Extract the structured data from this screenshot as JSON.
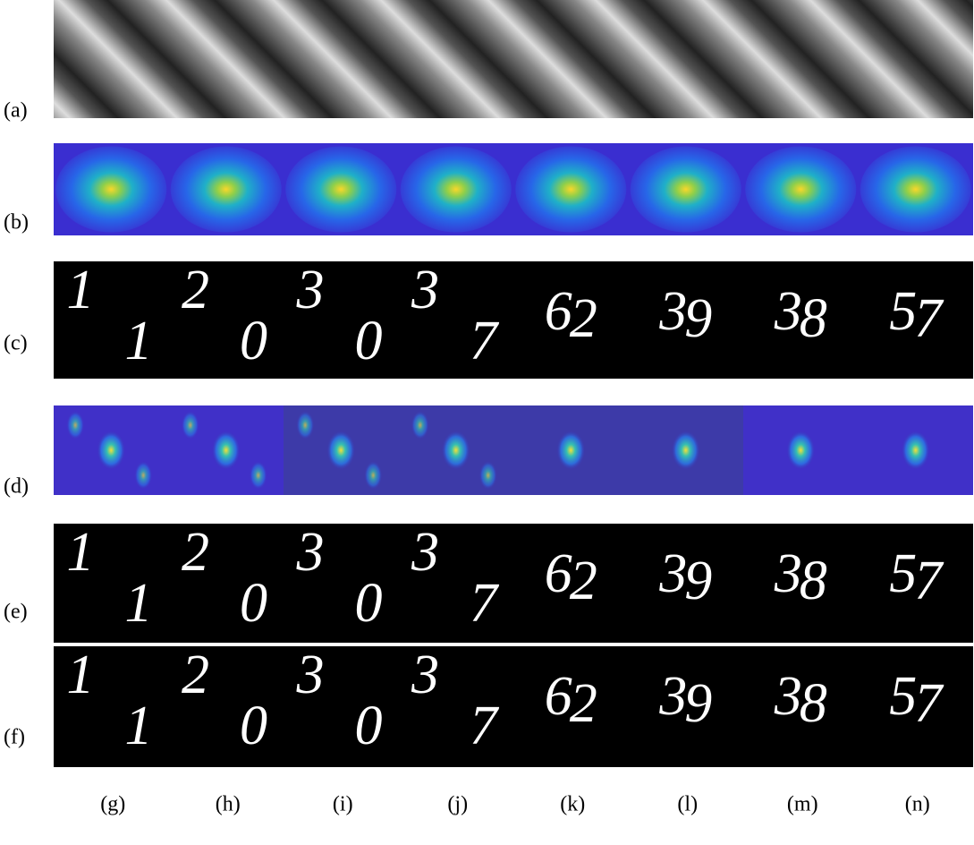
{
  "rows": [
    {
      "label": "(a)"
    },
    {
      "label": "(b)"
    },
    {
      "label": "(c)"
    },
    {
      "label": "(d)"
    },
    {
      "label": "(e)"
    },
    {
      "label": "(f)"
    }
  ],
  "columns": [
    {
      "label": "(g)",
      "digits": [
        "1",
        "1"
      ]
    },
    {
      "label": "(h)",
      "digits": [
        "2",
        "0"
      ]
    },
    {
      "label": "(i)",
      "digits": [
        "3",
        "0"
      ]
    },
    {
      "label": "(j)",
      "digits": [
        "3",
        "7"
      ]
    },
    {
      "label": "(k)",
      "digits": [
        "6",
        "2"
      ]
    },
    {
      "label": "(l)",
      "digits": [
        "3",
        "9"
      ]
    },
    {
      "label": "(m)",
      "digits": [
        "3",
        "8"
      ]
    },
    {
      "label": "(n)",
      "digits": [
        "5",
        "7"
      ]
    }
  ]
}
